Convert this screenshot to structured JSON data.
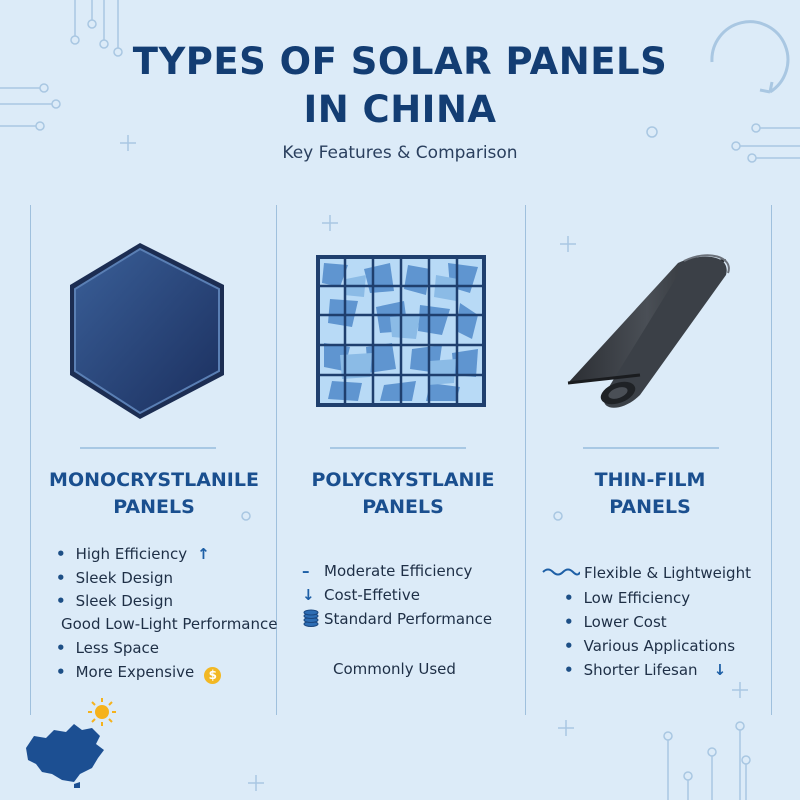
{
  "title": {
    "line1": "TYPES OF SOLAR PANELS",
    "line2": "IN CHINA"
  },
  "subtitle": "Key Features & Comparison",
  "columns": [
    {
      "heading_line1": "MONOCRYSTLANILE",
      "heading_line2": "PANELS",
      "image": "dark-blue-hexagon-cell",
      "features": [
        {
          "text": "High Efficiency",
          "icon": "arrow-up-icon"
        },
        {
          "text": "Sleek Design"
        },
        {
          "text": "Sleek Design"
        },
        {
          "text": "Good Low-Light Performance"
        },
        {
          "text": "Less Space"
        },
        {
          "text": "More Expensive",
          "icon": "dollar-coin-icon"
        }
      ]
    },
    {
      "heading_line1": "POLYCRYSTLANIE",
      "heading_line2": "PANELS",
      "image": "blue-multicrystal-grid-panel",
      "features": [
        {
          "text": "Moderate Efficiency",
          "icon": "minus-icon"
        },
        {
          "text": "Cost-Effetive",
          "icon": "arrow-down-icon"
        },
        {
          "text": "Standard Performance",
          "icon": "coin-stack-icon"
        },
        {
          "text": "Commonly Used"
        }
      ]
    },
    {
      "heading_line1": "THIN-FILM",
      "heading_line2": "PANELS",
      "image": "rolled-flexible-film",
      "features": [
        {
          "text": "Flexible & Lightweight",
          "icon": "wave-icon"
        },
        {
          "text": "Low Efficiency"
        },
        {
          "text": "Lower Cost"
        },
        {
          "text": "Various Applications"
        },
        {
          "text": "Shorter Lifesan",
          "icon": "arrow-down-icon"
        }
      ]
    }
  ],
  "colors": {
    "background": "#dcebf8",
    "title": "#133d73",
    "heading": "#1a4f8f",
    "accent": "#1d5fa6",
    "coin": "#f2b824",
    "sun": "#f5b21c"
  },
  "decor": [
    "sun-icon",
    "china-map-icon",
    "circuit-lines",
    "refresh-arrow-icon"
  ]
}
